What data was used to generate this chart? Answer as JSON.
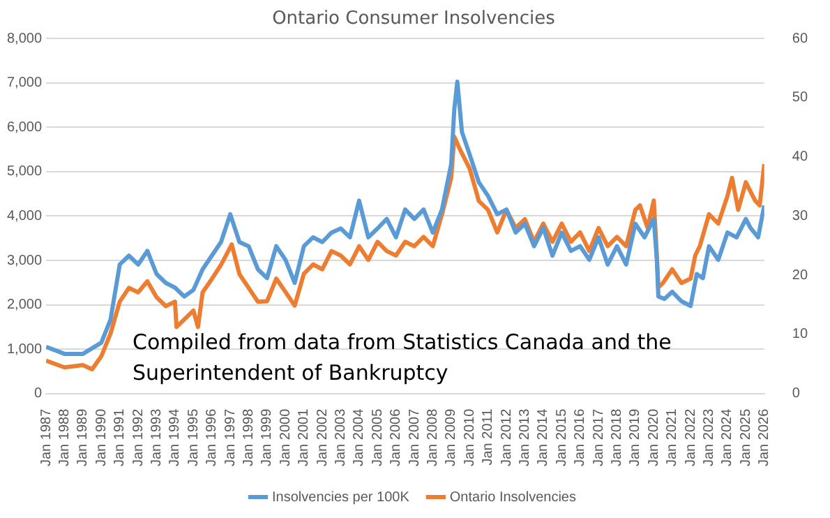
{
  "chart_data": {
    "type": "line",
    "title": "Ontario Consumer Insolvencies",
    "xlim": [
      "1987-01",
      "2026-01"
    ],
    "xticks": [
      {
        "value": "1987-01",
        "label": "Jan 1987"
      },
      {
        "value": "1988-01",
        "label": "Jan 1988"
      },
      {
        "value": "1989-01",
        "label": "Jan 1989"
      },
      {
        "value": "1990-01",
        "label": "Jan 1990"
      },
      {
        "value": "1991-01",
        "label": "Jan 1991"
      },
      {
        "value": "1992-01",
        "label": "Jan 1992"
      },
      {
        "value": "1993-01",
        "label": "Jan 1993"
      },
      {
        "value": "1994-01",
        "label": "Jan 1994"
      },
      {
        "value": "1995-01",
        "label": "Jan 1995"
      },
      {
        "value": "1996-01",
        "label": "Jan 1996"
      },
      {
        "value": "1997-01",
        "label": "Jan 1997"
      },
      {
        "value": "1998-01",
        "label": "Jan 1998"
      },
      {
        "value": "1999-01",
        "label": "Jan 1999"
      },
      {
        "value": "2000-01",
        "label": "Jan 2000"
      },
      {
        "value": "2001-01",
        "label": "Jan 2001"
      },
      {
        "value": "2002-01",
        "label": "Jan 2002"
      },
      {
        "value": "2003-01",
        "label": "Jan 2003"
      },
      {
        "value": "2004-01",
        "label": "Jan 2004"
      },
      {
        "value": "2005-01",
        "label": "Jan 2005"
      },
      {
        "value": "2006-01",
        "label": "Jan 2006"
      },
      {
        "value": "2007-01",
        "label": "Jan 2007"
      },
      {
        "value": "2008-01",
        "label": "Jan 2008"
      },
      {
        "value": "2009-01",
        "label": "Jan 2009"
      },
      {
        "value": "2010-01",
        "label": "Jan 2010"
      },
      {
        "value": "2011-01",
        "label": "Jan 2011"
      },
      {
        "value": "2012-01",
        "label": "Jan 2012"
      },
      {
        "value": "2013-01",
        "label": "Jan 2013"
      },
      {
        "value": "2014-01",
        "label": "Jan 2014"
      },
      {
        "value": "2015-01",
        "label": "Jan 2015"
      },
      {
        "value": "2016-01",
        "label": "Jan 2016"
      },
      {
        "value": "2017-01",
        "label": "Jan 2017"
      },
      {
        "value": "2018-01",
        "label": "Jan 2018"
      },
      {
        "value": "2019-01",
        "label": "Jan 2019"
      },
      {
        "value": "2020-01",
        "label": "Jan 2020"
      },
      {
        "value": "2021-01",
        "label": "Jan 2021"
      },
      {
        "value": "2022-01",
        "label": "Jan 2022"
      },
      {
        "value": "2023-01",
        "label": "Jan 2023"
      },
      {
        "value": "2024-01",
        "label": "Jan 2024"
      },
      {
        "value": "2025-01",
        "label": "Jan 2025"
      },
      {
        "value": "2026-01",
        "label": "Jan 2026"
      }
    ],
    "ylim": [
      0,
      8000
    ],
    "yticks": [
      0,
      {
        "value": 1000,
        "label": "1,000"
      },
      {
        "value": 2000,
        "label": "2,000"
      },
      {
        "value": 3000,
        "label": "3,000"
      },
      {
        "value": 4000,
        "label": "4,000"
      },
      {
        "value": 5000,
        "label": "5,000"
      },
      {
        "value": 6000,
        "label": "6,000"
      },
      {
        "value": 7000,
        "label": "7,000"
      },
      {
        "value": 8000,
        "label": "8,000"
      }
    ],
    "y2lim": [
      0,
      60
    ],
    "y2ticks": [
      0,
      10,
      20,
      30,
      40,
      50,
      60
    ],
    "grid": "y",
    "legend": "bottom",
    "annotations": [
      "Compiled from data from Statistics Canada and the Superintendent of Bankruptcy"
    ],
    "series": [
      {
        "name": "Ontario Insolvencies",
        "color": "#ed7d31",
        "x": [
          "1987-01",
          "1988-01",
          "1989-01",
          "1989-07",
          "1990-01",
          "1990-07",
          "1991-01",
          "1991-07",
          "1992-01",
          "1992-07",
          "1993-01",
          "1993-07",
          "1994-01",
          "1994-02",
          "1995-01",
          "1995-04",
          "1995-07",
          "1996-01",
          "1996-07",
          "1997-02",
          "1997-07",
          "1998-01",
          "1998-07",
          "1999-01",
          "1999-07",
          "2000-01",
          "2000-07",
          "2001-01",
          "2001-07",
          "2002-01",
          "2002-07",
          "2003-01",
          "2003-07",
          "2004-01",
          "2004-07",
          "2005-01",
          "2005-07",
          "2006-01",
          "2006-07",
          "2007-01",
          "2007-07",
          "2008-01",
          "2008-07",
          "2009-01",
          "2009-03",
          "2009-07",
          "2010-01",
          "2010-07",
          "2011-01",
          "2011-07",
          "2012-01",
          "2012-07",
          "2013-01",
          "2013-07",
          "2014-01",
          "2014-07",
          "2015-01",
          "2015-07",
          "2016-01",
          "2016-07",
          "2017-01",
          "2017-07",
          "2018-01",
          "2018-07",
          "2019-01",
          "2019-04",
          "2019-09",
          "2020-01",
          "2020-03",
          "2020-04",
          "2020-07",
          "2021-01",
          "2021-07",
          "2022-01",
          "2022-04",
          "2022-07",
          "2023-01",
          "2023-07",
          "2024-01",
          "2024-04",
          "2024-08",
          "2025-01",
          "2025-07",
          "2025-10",
          "2026-01"
        ],
        "values": [
          740,
          590,
          640,
          545,
          840,
          1350,
          2070,
          2380,
          2280,
          2530,
          2170,
          1970,
          2070,
          1500,
          1870,
          1500,
          2280,
          2580,
          2900,
          3360,
          2690,
          2380,
          2070,
          2080,
          2590,
          2290,
          1980,
          2700,
          2910,
          2800,
          3210,
          3110,
          2910,
          3320,
          3010,
          3420,
          3210,
          3110,
          3420,
          3320,
          3530,
          3320,
          4040,
          4860,
          5790,
          5480,
          5070,
          4340,
          4140,
          3630,
          4140,
          3730,
          3930,
          3420,
          3830,
          3420,
          3830,
          3420,
          3630,
          3210,
          3730,
          3320,
          3530,
          3320,
          4140,
          4240,
          3730,
          4350,
          3110,
          2390,
          2490,
          2800,
          2490,
          2590,
          3110,
          3320,
          4040,
          3830,
          4450,
          4860,
          4140,
          4760,
          4350,
          4240,
          5170
        ]
      },
      {
        "name": "Insolvencies per 100K",
        "color": "#5b9bd5",
        "axis": "y2",
        "x": [
          "1987-01",
          "1988-01",
          "1989-01",
          "1990-01",
          "1990-07",
          "1991-01",
          "1991-07",
          "1992-01",
          "1992-07",
          "1993-01",
          "1993-07",
          "1994-01",
          "1994-07",
          "1995-01",
          "1995-07",
          "1996-01",
          "1996-07",
          "1997-01",
          "1997-07",
          "1998-01",
          "1998-07",
          "1999-01",
          "1999-07",
          "2000-01",
          "2000-07",
          "2001-01",
          "2001-07",
          "2002-01",
          "2002-07",
          "2003-01",
          "2003-07",
          "2004-01",
          "2004-07",
          "2005-01",
          "2005-07",
          "2006-01",
          "2006-07",
          "2007-01",
          "2007-07",
          "2008-01",
          "2008-07",
          "2009-01",
          "2009-03",
          "2009-05",
          "2009-08",
          "2010-01",
          "2010-07",
          "2011-01",
          "2011-07",
          "2012-01",
          "2012-07",
          "2013-01",
          "2013-07",
          "2014-01",
          "2014-07",
          "2015-01",
          "2015-07",
          "2016-01",
          "2016-07",
          "2017-01",
          "2017-07",
          "2018-01",
          "2018-07",
          "2019-01",
          "2019-07",
          "2020-01",
          "2020-03",
          "2020-04",
          "2020-08",
          "2021-01",
          "2021-07",
          "2022-01",
          "2022-05",
          "2022-09",
          "2023-01",
          "2023-07",
          "2024-01",
          "2024-07",
          "2025-01",
          "2025-04",
          "2025-09",
          "2026-01"
        ],
        "values": [
          7.9,
          6.7,
          6.7,
          8.6,
          12.5,
          21.8,
          23.3,
          21.8,
          24.1,
          20.2,
          18.7,
          17.9,
          16.4,
          17.5,
          21,
          23.3,
          25.6,
          30.3,
          25.6,
          24.9,
          21,
          19.5,
          24.9,
          22.6,
          18.7,
          24.9,
          26.4,
          25.6,
          27.2,
          27.9,
          26.4,
          32.6,
          26.4,
          27.9,
          29.5,
          26.4,
          31.1,
          29.5,
          31.1,
          27.2,
          31.1,
          38.8,
          48,
          52.7,
          44.2,
          40.4,
          35.7,
          33.4,
          30.3,
          31.1,
          27.2,
          28.7,
          24.9,
          28,
          23.3,
          27.2,
          24.1,
          24.9,
          22.6,
          26.4,
          21.8,
          24.9,
          21.8,
          28.7,
          26.4,
          29.5,
          22.6,
          16.4,
          16,
          17.2,
          15.6,
          14.8,
          20.2,
          19.5,
          24.9,
          22.6,
          27.2,
          26.4,
          29.5,
          28,
          26.4,
          31.8
        ]
      }
    ]
  }
}
